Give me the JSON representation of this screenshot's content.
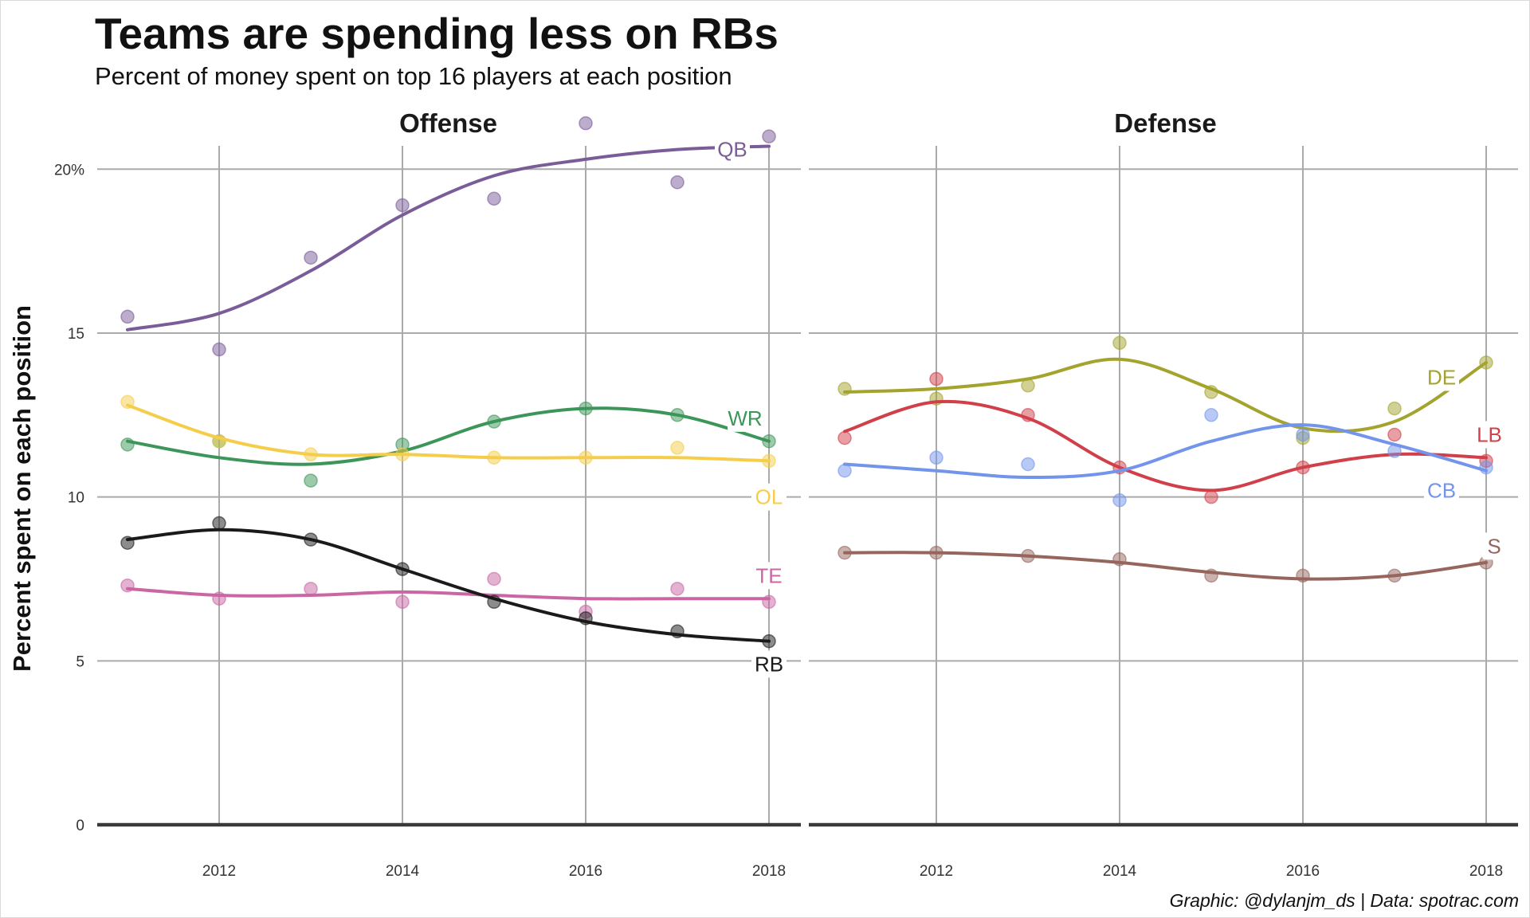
{
  "title": "Teams are spending less on RBs",
  "subtitle": "Percent of money spent on top 16 players at each position",
  "ylabel": "Percent spent on each position",
  "caption": "Graphic: @dylanjm_ds | Data: spotrac.com",
  "chart_data": {
    "type": "scatter",
    "title": "Teams are spending less on RBs",
    "subtitle": "Percent of money spent on top 16 players at each position",
    "ylabel": "Percent spent on each position",
    "ylim": [
      0,
      22
    ],
    "xlim": [
      2010.8,
      2018.35
    ],
    "y_ticks": [
      0,
      5,
      10,
      15,
      20
    ],
    "y_tick_labels": [
      "0",
      "5",
      "10",
      "15",
      "20%"
    ],
    "x_ticks": [
      2012,
      2014,
      2016,
      2018
    ],
    "x_tick_labels": [
      "2012",
      "2014",
      "2016",
      "2018"
    ],
    "grid": true,
    "smoothed_trend_lines": true,
    "facets": [
      {
        "name": "Offense",
        "series": [
          {
            "name": "QB",
            "color": "#7a5c99",
            "x": [
              2011,
              2012,
              2013,
              2014,
              2015,
              2016,
              2017,
              2018
            ],
            "values": [
              15.5,
              14.5,
              17.3,
              18.9,
              19.1,
              21.4,
              19.6,
              21.0
            ],
            "trend": [
              15.1,
              15.6,
              16.9,
              18.6,
              19.8,
              20.3,
              20.6,
              20.7
            ]
          },
          {
            "name": "WR",
            "color": "#3d9659",
            "x": [
              2011,
              2012,
              2013,
              2014,
              2015,
              2016,
              2017,
              2018
            ],
            "values": [
              11.6,
              11.7,
              10.5,
              11.6,
              12.3,
              12.7,
              12.5,
              11.7
            ],
            "trend": [
              11.7,
              11.2,
              11.0,
              11.4,
              12.3,
              12.7,
              12.5,
              11.7
            ]
          },
          {
            "name": "OL",
            "color": "#f5cd4a",
            "x": [
              2011,
              2012,
              2013,
              2014,
              2015,
              2016,
              2017,
              2018
            ],
            "values": [
              12.9,
              11.7,
              11.3,
              11.3,
              11.2,
              11.2,
              11.5,
              11.1
            ],
            "trend": [
              12.8,
              11.8,
              11.3,
              11.3,
              11.2,
              11.2,
              11.2,
              11.1
            ]
          },
          {
            "name": "TE",
            "color": "#c966a3",
            "x": [
              2011,
              2012,
              2013,
              2014,
              2015,
              2016,
              2017,
              2018
            ],
            "values": [
              7.3,
              6.9,
              7.2,
              6.8,
              7.5,
              6.5,
              7.2,
              6.8
            ],
            "trend": [
              7.2,
              7.0,
              7.0,
              7.1,
              7.0,
              6.9,
              6.9,
              6.9
            ]
          },
          {
            "name": "RB",
            "color": "#1a1a1a",
            "x": [
              2011,
              2012,
              2013,
              2014,
              2015,
              2016,
              2017,
              2018
            ],
            "values": [
              8.6,
              9.2,
              8.7,
              7.8,
              6.8,
              6.3,
              5.9,
              5.6
            ],
            "trend": [
              8.7,
              9.0,
              8.7,
              7.8,
              6.9,
              6.2,
              5.8,
              5.6
            ]
          }
        ]
      },
      {
        "name": "Defense",
        "series": [
          {
            "name": "DE",
            "color": "#a3a32d",
            "x": [
              2011,
              2012,
              2013,
              2014,
              2015,
              2016,
              2017,
              2018
            ],
            "values": [
              13.3,
              13.0,
              13.4,
              14.7,
              13.2,
              11.8,
              12.7,
              14.1
            ],
            "trend": [
              13.2,
              13.3,
              13.6,
              14.2,
              13.3,
              12.1,
              12.3,
              14.1
            ]
          },
          {
            "name": "LB",
            "color": "#d1404a",
            "x": [
              2011,
              2012,
              2013,
              2014,
              2015,
              2016,
              2017,
              2018
            ],
            "values": [
              11.8,
              13.6,
              12.5,
              10.9,
              10.0,
              10.9,
              11.9,
              11.1
            ],
            "trend": [
              12.0,
              12.9,
              12.4,
              10.9,
              10.2,
              10.9,
              11.3,
              11.2
            ]
          },
          {
            "name": "CB",
            "color": "#7394eb",
            "x": [
              2011,
              2012,
              2013,
              2014,
              2015,
              2016,
              2017,
              2018
            ],
            "values": [
              10.8,
              11.2,
              11.0,
              9.9,
              12.5,
              11.9,
              11.4,
              10.9
            ],
            "trend": [
              11.0,
              10.8,
              10.6,
              10.8,
              11.7,
              12.2,
              11.6,
              10.8
            ]
          },
          {
            "name": "S",
            "color": "#96655d",
            "x": [
              2011,
              2012,
              2013,
              2014,
              2015,
              2016,
              2017,
              2018
            ],
            "values": [
              8.3,
              8.3,
              8.2,
              8.1,
              7.6,
              7.6,
              7.6,
              8.0
            ],
            "trend": [
              8.3,
              8.3,
              8.2,
              8.0,
              7.7,
              7.5,
              7.6,
              8.0
            ]
          }
        ]
      }
    ]
  }
}
